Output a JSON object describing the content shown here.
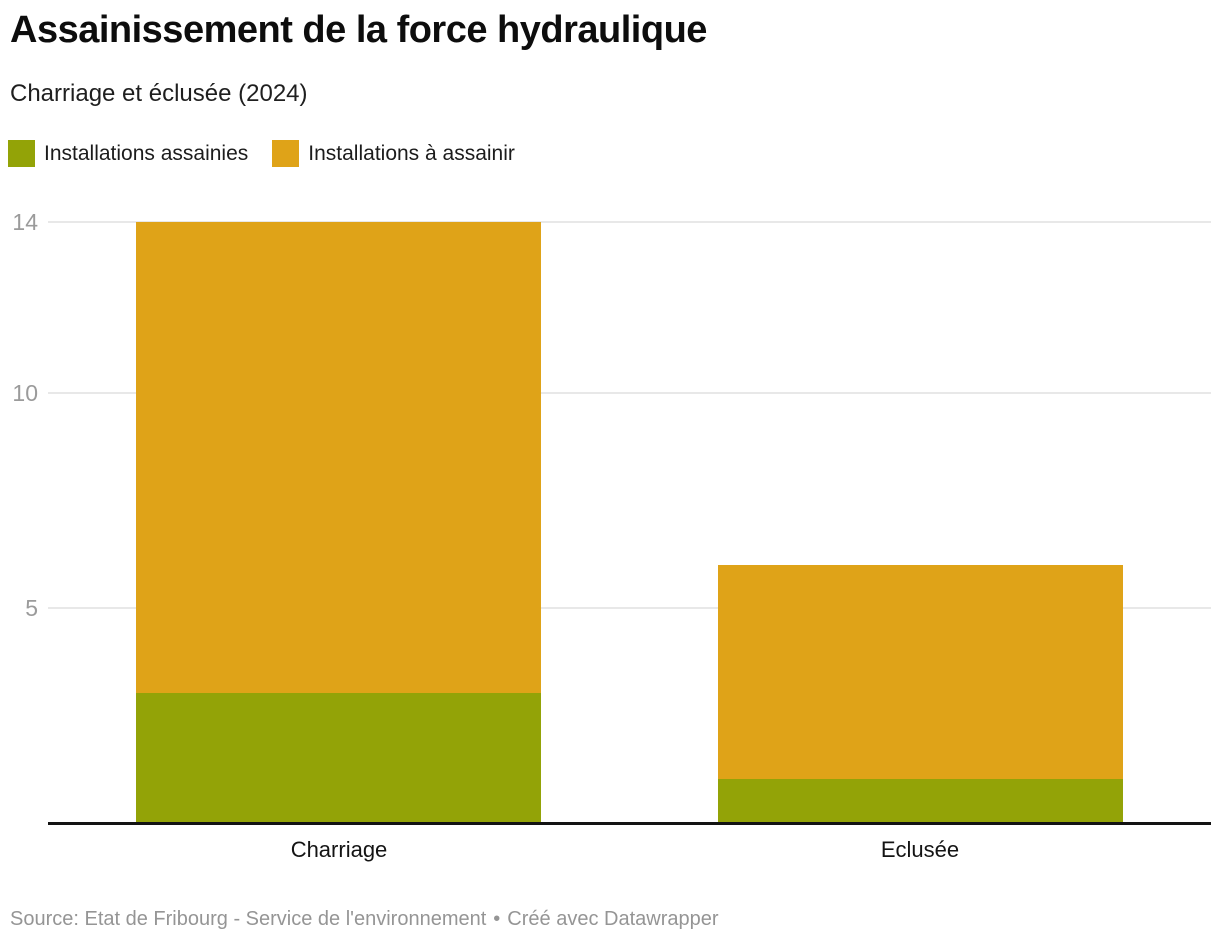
{
  "header": {
    "title": "Assainissement de la force hydraulique",
    "subtitle": "Charriage et éclusée (2024)"
  },
  "chart_data": {
    "type": "bar",
    "stacked": true,
    "orientation": "vertical",
    "title": "Assainissement de la force hydraulique",
    "subtitle": "Charriage et éclusée (2024)",
    "categories": [
      "Charriage",
      "Eclusée"
    ],
    "series": [
      {
        "name": "Installations assainies",
        "color": "#93a307",
        "values": [
          3,
          1
        ]
      },
      {
        "name": "Installations à assainir",
        "color": "#dfa318",
        "values": [
          11,
          5
        ]
      }
    ],
    "totals": [
      14,
      6
    ],
    "xlabel": "",
    "ylabel": "",
    "yticks": [
      5,
      10,
      14
    ],
    "ylim": [
      0,
      14
    ],
    "grid": true,
    "legend_position": "top",
    "colors": {
      "gridline": "#e8e8e8",
      "axis_line": "#131313",
      "tick_label": "#9b9b9b"
    }
  },
  "footer": {
    "source": "Source: Etat de Fribourg - Service de l'environnement",
    "separator": "•",
    "credit": "Créé avec Datawrapper"
  }
}
